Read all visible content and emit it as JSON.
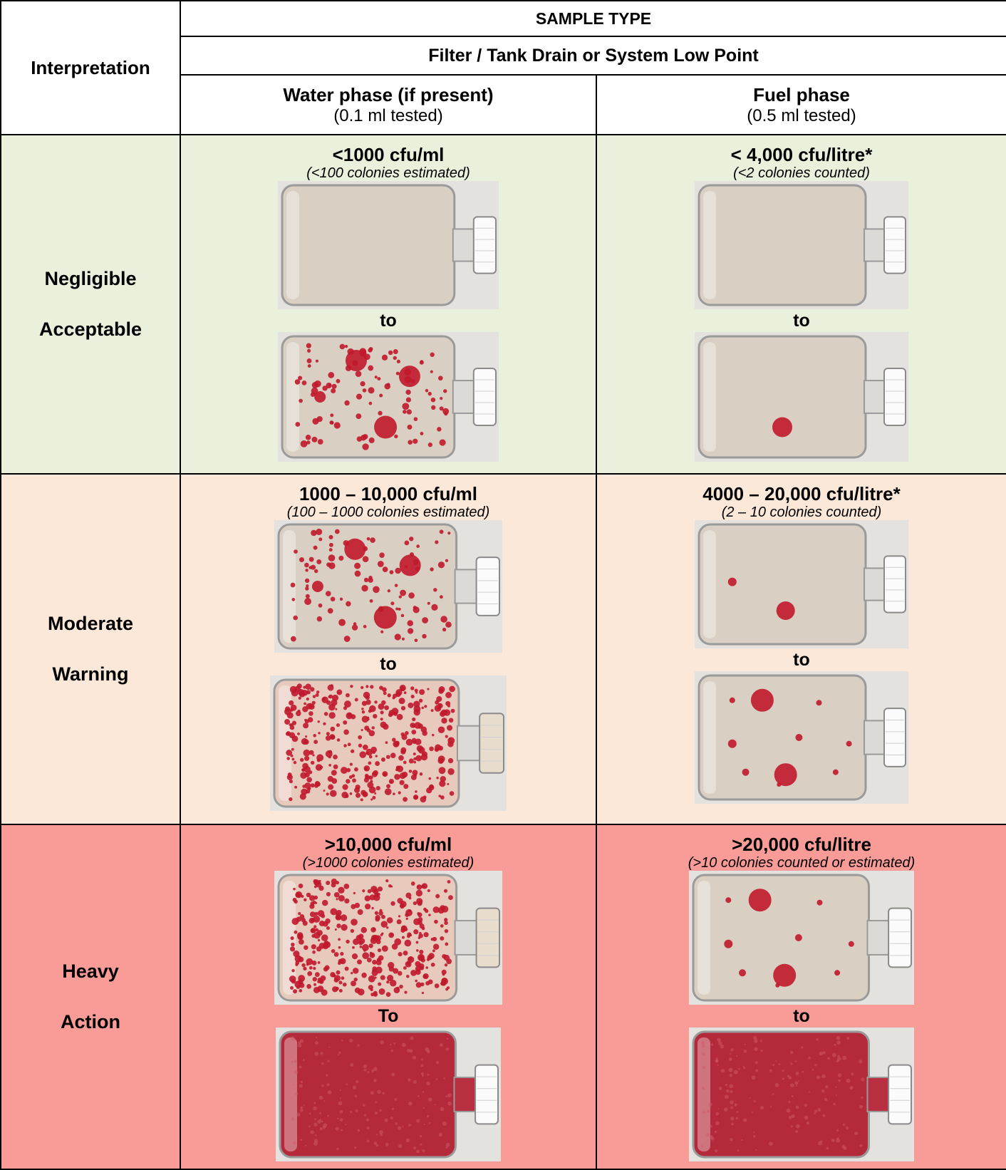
{
  "header": {
    "interpretation": "Interpretation",
    "sample_type": "SAMPLE TYPE",
    "location": "Filter / Tank Drain or System Low Point",
    "water_title": "Water phase (if present)",
    "water_sub": "(0.1 ml tested)",
    "fuel_title": "Fuel phase",
    "fuel_sub": "(0.5 ml tested)"
  },
  "rows": [
    {
      "interp_1": "Negligible",
      "interp_2": "Acceptable",
      "water_level": "<1000 cfu/ml",
      "water_note": "(<100 colonies estimated)",
      "water_to": "to",
      "fuel_level": "< 4,000 cfu/litre*",
      "fuel_note": "(<2  colonies counted)",
      "fuel_to": "to"
    },
    {
      "interp_1": "Moderate",
      "interp_2": "Warning",
      "water_level": "1000 – 10,000 cfu/ml",
      "water_note": "(100 – 1000 colonies estimated)",
      "water_to": "to",
      "fuel_level": "4000 – 20,000 cfu/litre*",
      "fuel_note": "(2 – 10 colonies counted)",
      "fuel_to": "to"
    },
    {
      "interp_1": "Heavy",
      "interp_2": "Action",
      "water_level": ">10,000 cfu/ml",
      "water_note": "(>1000 colonies estimated)",
      "water_to": "To",
      "fuel_level": ">20,000 cfu/litre",
      "fuel_note": "(>10 colonies counted or estimated)",
      "fuel_to": "to"
    }
  ],
  "colors": {
    "negligible_bg": "#e9f0dc",
    "moderate_bg": "#fce8d9",
    "heavy_bg": "#f99b97",
    "colony_red": "#c0182c"
  }
}
